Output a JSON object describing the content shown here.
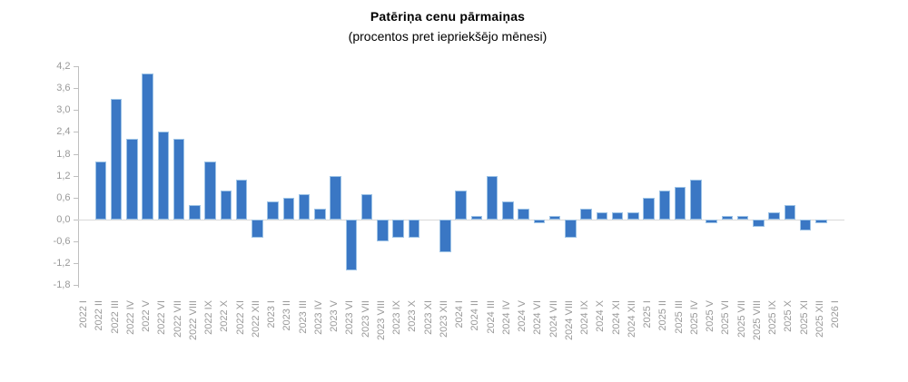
{
  "title": "Patēriņa cenu pārmaiņas",
  "subtitle": "(procentos pret iepriekšējo mēnesi)",
  "chart_data": {
    "type": "bar",
    "title": "Patēriņa cenu pārmaiņas",
    "subtitle": "(procentos pret iepriekšējo mēnesi)",
    "xlabel": "",
    "ylabel": "",
    "ylim": [
      -1.8,
      4.2
    ],
    "ytick_step": 0.6,
    "ytick_labels": [
      "4,2",
      "3,6",
      "3,0",
      "2,4",
      "1,8",
      "1,2",
      "0,6",
      "0,0",
      "-0,6",
      "-1,2",
      "-1,8"
    ],
    "grid": "zero-line-only",
    "legend": "none",
    "categories": [
      "2022 I",
      "2022 II",
      "2022 III",
      "2022 IV",
      "2022 V",
      "2022 VI",
      "2022 VII",
      "2022 VIII",
      "2022 IX",
      "2022 X",
      "2022 XI",
      "2022 XII",
      "2023 I",
      "2023 II",
      "2023 III",
      "2023 IV",
      "2023 V",
      "2023 VI",
      "2023 VII",
      "2023 VIII",
      "2023 IX",
      "2023 X",
      "2023 XI",
      "2023 XII",
      "2024 I",
      "2024 II",
      "2024 III",
      "2024 IV",
      "2024 V",
      "2024 VI",
      "2024 VII",
      "2024 VIII",
      "2024 IX",
      "2024 X",
      "2024 XI",
      "2024 XII",
      "2025 I",
      "2025 II",
      "2025 III",
      "2025 IV",
      "2025 V",
      "2025 VI",
      "2025 VII",
      "2025 VIII",
      "2025 IX",
      "2025 X",
      "2025 XI",
      "2025 XII",
      "2026 I"
    ],
    "values": [
      0,
      1.6,
      3.3,
      2.2,
      4.0,
      2.4,
      2.2,
      0.4,
      1.6,
      0.8,
      1.1,
      -0.5,
      0.5,
      0.6,
      0.7,
      0.3,
      1.2,
      -1.4,
      0.7,
      -0.6,
      -0.5,
      -0.5,
      0,
      -0.9,
      0.8,
      0.1,
      1.2,
      0.5,
      0.3,
      -0.1,
      0.1,
      -0.5,
      0.3,
      0.2,
      0.2,
      0.2,
      0.6,
      0.8,
      0.9,
      1.1,
      -0.1,
      0.1,
      0.1,
      -0.2,
      0.2,
      0.4,
      -0.3,
      -0.1,
      0
    ],
    "colors": {
      "bar_fill": "#3A77C4",
      "bar_border": "#9DC3E6",
      "axis_line": "#BFBFBF",
      "zero_line": "#D9D9D9",
      "tick_label": "#999999",
      "title_text": "#000000"
    }
  }
}
